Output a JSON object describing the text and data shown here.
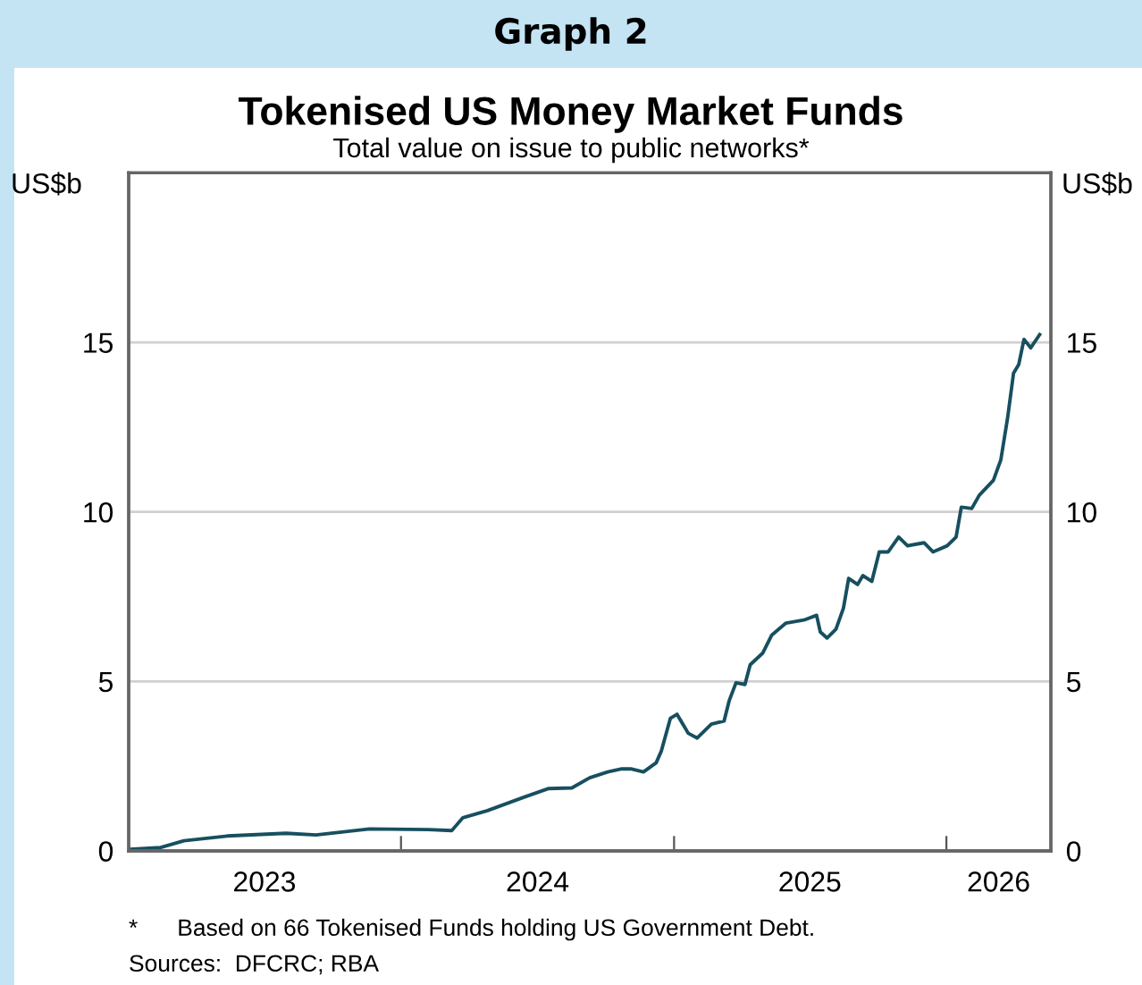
{
  "chart_data": {
    "type": "line",
    "title": "Tokenised US Money Market Funds",
    "subtitle": "Total value on issue to public networks*",
    "ylabel": "US$b",
    "y2label": "US$b",
    "annotations": [
      "Graph 2",
      "*      Based on 66 Tokenised Funds holding US Government Debt.",
      "Sources:  DFCRC; RBA"
    ],
    "series": [
      {
        "color": "#174f5f",
        "x": [
          "2023-01-02",
          "2023-02-13",
          "2023-03-16",
          "2023-05-13",
          "2023-07-31",
          "2023-09-09",
          "2023-11-20",
          "2024-02-07",
          "2024-03-09",
          "2024-03-24",
          "2024-04-26",
          "2024-06-13",
          "2024-07-17",
          "2024-08-17",
          "2024-09-10",
          "2024-10-04",
          "2024-10-23",
          "2024-11-04",
          "2024-11-21",
          "2024-12-08",
          "2024-12-15",
          "2024-12-27",
          "2025-01-05",
          "2025-01-20",
          "2025-02-01",
          "2025-02-20",
          "2025-03-09",
          "2025-03-16",
          "2025-03-25",
          "2025-04-06",
          "2025-04-13",
          "2025-04-30",
          "2025-05-12",
          "2025-05-31",
          "2025-06-24",
          "2025-07-11",
          "2025-07-16",
          "2025-07-25",
          "2025-08-06",
          "2025-08-16",
          "2025-08-23",
          "2025-09-04",
          "2025-09-11",
          "2025-09-23",
          "2025-10-03",
          "2025-10-15",
          "2025-10-29",
          "2025-11-10",
          "2025-12-02",
          "2025-12-14",
          "2026-01-02",
          "2026-01-14",
          "2026-01-21",
          "2026-02-04",
          "2026-02-14",
          "2026-03-05",
          "2026-03-15",
          "2026-03-24",
          "2026-04-01",
          "2026-04-08",
          "2026-04-15",
          "2026-04-24",
          "2026-05-06"
        ],
        "values": [
          0.05,
          0.1,
          0.3,
          0.44,
          0.52,
          0.47,
          0.65,
          0.63,
          0.6,
          0.98,
          1.19,
          1.58,
          1.84,
          1.86,
          2.16,
          2.33,
          2.42,
          2.42,
          2.33,
          2.6,
          2.95,
          3.91,
          4.03,
          3.47,
          3.33,
          3.74,
          3.83,
          4.44,
          4.96,
          4.91,
          5.49,
          5.84,
          6.37,
          6.72,
          6.81,
          6.95,
          6.46,
          6.28,
          6.54,
          7.16,
          8.04,
          7.86,
          8.12,
          7.95,
          8.82,
          8.82,
          9.26,
          9.0,
          9.09,
          8.82,
          9.0,
          9.26,
          10.14,
          10.1,
          10.49,
          10.93,
          11.54,
          12.77,
          14.09,
          14.35,
          15.09,
          14.84,
          15.23
        ]
      }
    ],
    "xlim": [
      "2023-01-01",
      "2026-05-21"
    ],
    "xticks": [
      {
        "value": "2023-07-02",
        "label": "2023"
      },
      {
        "value": "2024-01-01",
        "label": null
      },
      {
        "value": "2024-07-02",
        "label": "2024"
      },
      {
        "value": "2025-01-01",
        "label": null
      },
      {
        "value": "2025-07-02",
        "label": "2025"
      },
      {
        "value": "2026-01-01",
        "label": null
      },
      {
        "value": "2026-03-12",
        "label": "2026"
      }
    ],
    "ylim": [
      0,
      20
    ],
    "yticks": [
      0,
      5,
      10,
      15
    ],
    "y2lim": [
      0,
      20
    ],
    "y2ticks": [
      0,
      5,
      10,
      15
    ],
    "grid": "y",
    "legend": false,
    "marker": "none",
    "line_style": "solid"
  }
}
